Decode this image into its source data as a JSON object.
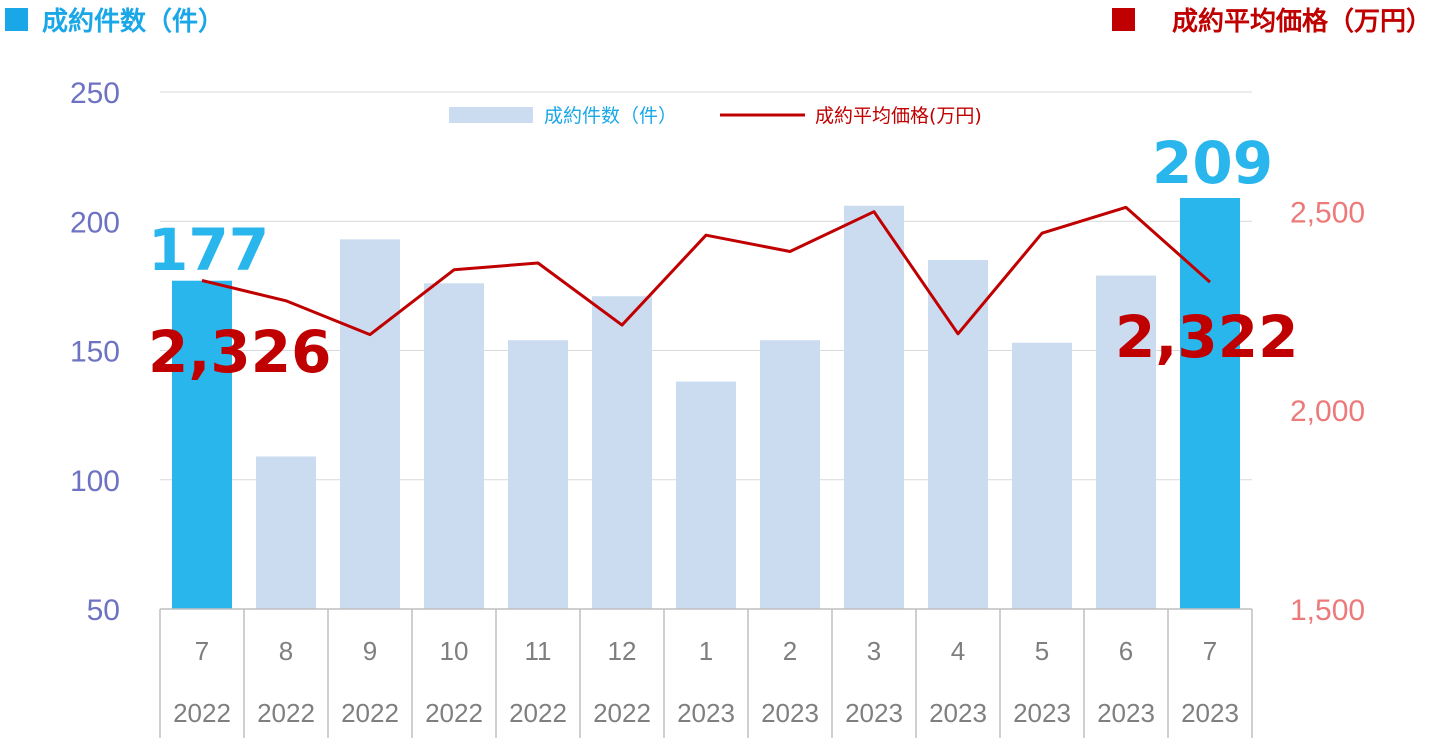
{
  "header": {
    "left_label": "成約件数（件）",
    "right_label": "成約平均価格（万円）"
  },
  "legend": {
    "bars": "成約件数（件）",
    "line": "成約平均価格(万円)"
  },
  "colors": {
    "bar_default": "#ccdcf0",
    "bar_highlight": "#29b6ec",
    "line": "#c00000",
    "header_left": "#1aa7e8",
    "header_right": "#c00000",
    "left_axis_text": "#6d72c3",
    "right_axis_text": "#ec7a7a",
    "callout_bar": "#29b6ec",
    "callout_line": "#c00000"
  },
  "chart_data": {
    "type": "bar",
    "categories": [
      "7",
      "8",
      "9",
      "10",
      "11",
      "12",
      "1",
      "2",
      "3",
      "4",
      "5",
      "6",
      "7"
    ],
    "years": [
      "2022",
      "2022",
      "2022",
      "2022",
      "2022",
      "2022",
      "2023",
      "2023",
      "2023",
      "2023",
      "2023",
      "2023",
      "2023"
    ],
    "series": [
      {
        "name": "成約件数（件）",
        "type": "bar",
        "axis": "left",
        "values": [
          177,
          109,
          193,
          176,
          154,
          171,
          138,
          154,
          206,
          185,
          153,
          179,
          209
        ],
        "highlight": [
          0,
          12
        ]
      },
      {
        "name": "成約平均価格(万円)",
        "type": "line",
        "axis": "right",
        "values": [
          2326,
          2275,
          2190,
          2353,
          2370,
          2214,
          2440,
          2399,
          2499,
          2192,
          2445,
          2510,
          2322
        ]
      }
    ],
    "left_axis": {
      "ylim": [
        50,
        250
      ],
      "ticks": [
        "50",
        "100",
        "150",
        "200",
        "250"
      ]
    },
    "right_axis": {
      "ylim": [
        1500,
        2800
      ],
      "ticks": [
        "1,500",
        "2,000",
        "2,500"
      ]
    },
    "grid": true,
    "legend_position": "top",
    "annotations": {
      "first_bar": "177",
      "last_bar": "209",
      "first_line": "2,326",
      "last_line": "2,322"
    }
  }
}
